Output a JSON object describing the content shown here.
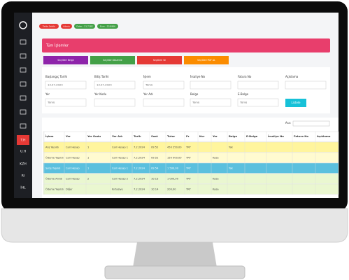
{
  "badges": [
    "Tahta Sahibi",
    "Admin",
    "Dolar : 21.7182",
    "Euro : 23.8866"
  ],
  "sidebar": {
    "items": [
      "T.H",
      "U.H",
      "KZH",
      "RI",
      "İHL"
    ]
  },
  "page_title": "Tüm İşlemler",
  "actions": [
    "Seçilileri Belge",
    "Seçilileri Düzenle",
    "Seçilileri Sil",
    "Seçilileri PDF AL"
  ],
  "filters": [
    {
      "label": "Başlangıç Tarihi",
      "value": "13.07.2024"
    },
    {
      "label": "Bitiş Tarihi",
      "value": "13.07.2024"
    },
    {
      "label": "İşlem",
      "value": "Tümü"
    },
    {
      "label": "İrsaliye No"
    },
    {
      "label": "Fatura No"
    },
    {
      "label": "Açıklama"
    },
    {
      "label": "Yer",
      "value": "Tümü"
    },
    {
      "label": "Yer Kodu"
    },
    {
      "label": "Yer Adı"
    },
    {
      "label": "Belge",
      "value": "Tümü"
    },
    {
      "label": "E-Belge",
      "value": "Tümü"
    }
  ],
  "list_button": "Listele",
  "search_label": "Ara:",
  "table": {
    "columns": [
      "İşlem",
      "Yer",
      "Yer Kodu",
      "Yer Adı",
      "Tarih",
      "Saat",
      "Tutar",
      "Pr",
      "Kur",
      "Yer",
      "Belge",
      "E-Belge",
      "İrsaliye No",
      "Fatura No",
      "Açıklama"
    ],
    "rows": [
      [
        "Alış Yapıldı",
        "Cari Hesap",
        "1",
        "Cari Hesap 1",
        "7.2.2024",
        "09:52",
        "450 250,00",
        "TRY",
        null,
        null,
        "Yok",
        null,
        null,
        null,
        null
      ],
      [
        "Ödeme Yapıldı",
        "Cari Hesap",
        "1",
        "Cari Hesap 1",
        "7.2.2024",
        "09:52",
        "150 000,00",
        "TRY",
        null,
        "Kasa",
        null,
        null,
        null,
        null,
        null
      ],
      [
        "Satış Yapıldı",
        "Cari Hesap",
        "1",
        "Cari Hesap 1",
        "7.2.2024",
        "09:54",
        "1 500,00",
        "TRY",
        null,
        null,
        "Yok",
        null,
        null,
        null,
        null
      ],
      [
        "Ödeme Alındı",
        "Cari Hesap",
        "2",
        "Cari Hesap 2",
        "7.2.2024",
        "10:13",
        "1 000,00",
        "TRY",
        null,
        "Kasa",
        null,
        null,
        null,
        null,
        null
      ],
      [
        "Ödeme Yapıldı",
        "Diğer",
        null,
        "Kırtasiye",
        "7.2.2024",
        "10:14",
        "200,00",
        "TRY",
        null,
        "Kasa",
        null,
        null,
        null,
        null,
        null
      ]
    ]
  }
}
